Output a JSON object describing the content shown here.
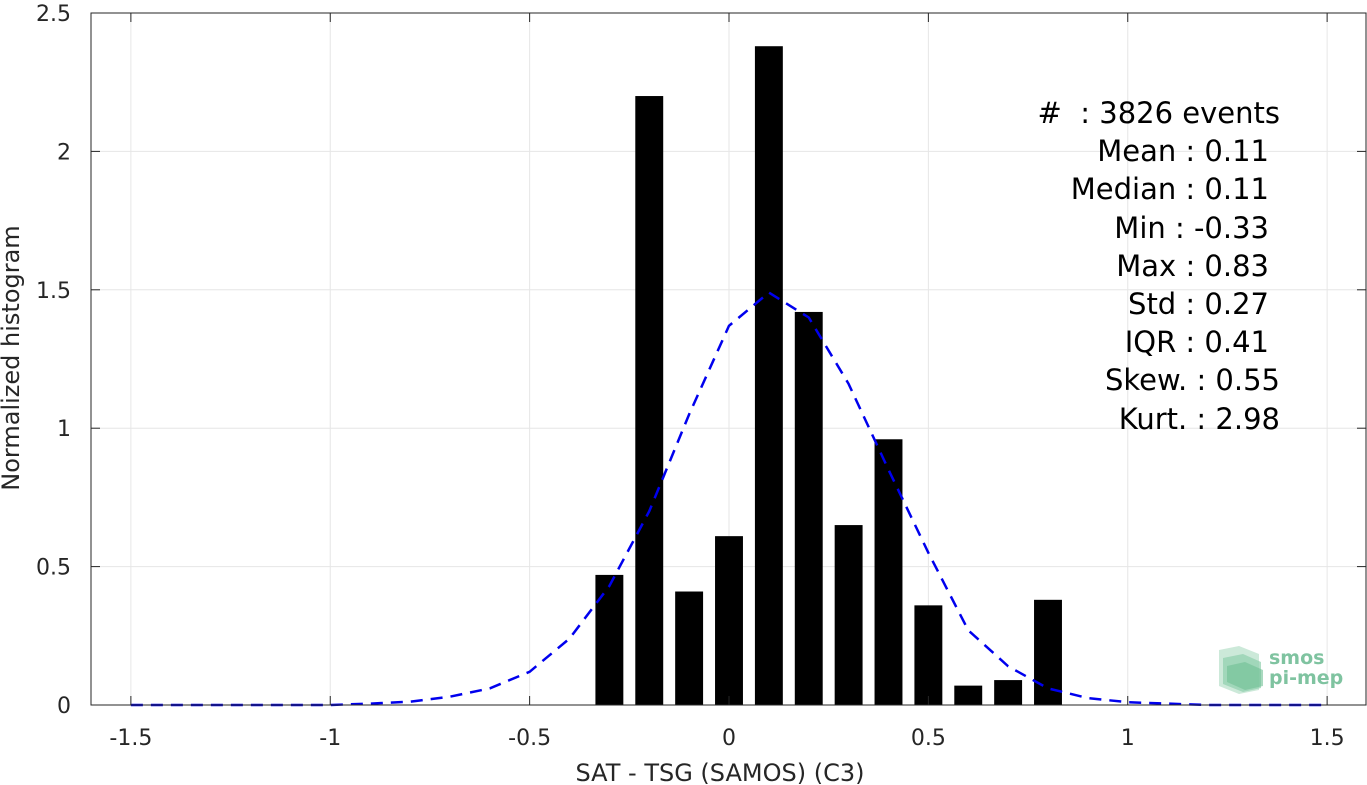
{
  "chart_data": {
    "type": "bar",
    "xlabel": "SAT - TSG (SAMOS) (C3)",
    "ylabel": "Normalized histogram",
    "xlim": [
      -1.6,
      1.6
    ],
    "ylim": [
      0,
      2.5
    ],
    "xticks": [
      -1.5,
      -1,
      -0.5,
      0,
      0.5,
      1,
      1.5
    ],
    "xtick_labels": [
      "-1.5",
      "-1",
      "-0.5",
      "0",
      "0.5",
      "1",
      "1.5"
    ],
    "yticks": [
      0,
      0.5,
      1,
      1.5,
      2,
      2.5
    ],
    "ytick_labels": [
      "0",
      "0.5",
      "1",
      "1.5",
      "2",
      "2.5"
    ],
    "grid": true,
    "bar_width": 0.07,
    "bars": {
      "x": [
        -0.3,
        -0.2,
        -0.1,
        0.0,
        0.1,
        0.2,
        0.3,
        0.4,
        0.5,
        0.6,
        0.7,
        0.8
      ],
      "values": [
        0.47,
        2.2,
        0.41,
        0.61,
        2.38,
        1.42,
        0.65,
        0.96,
        0.36,
        0.07,
        0.09,
        0.38
      ],
      "color": "#000000"
    },
    "fit_curve": {
      "style": "dashed",
      "color": "#0000ee",
      "x": [
        -1.5,
        -1.4,
        -1.3,
        -1.2,
        -1.1,
        -1.0,
        -0.9,
        -0.8,
        -0.7,
        -0.6,
        -0.5,
        -0.4,
        -0.3,
        -0.2,
        -0.1,
        0.0,
        0.1,
        0.2,
        0.3,
        0.4,
        0.5,
        0.6,
        0.7,
        0.8,
        0.9,
        1.0,
        1.1,
        1.2,
        1.3,
        1.4,
        1.5
      ],
      "y": [
        0.0,
        0.0,
        0.0,
        0.0,
        0.0,
        0.0,
        0.005,
        0.012,
        0.03,
        0.06,
        0.12,
        0.24,
        0.43,
        0.7,
        1.05,
        1.37,
        1.49,
        1.4,
        1.16,
        0.85,
        0.55,
        0.27,
        0.14,
        0.06,
        0.025,
        0.01,
        0.005,
        0.0,
        0.0,
        0.0,
        0.0
      ]
    },
    "annotation": [
      "#  : 3826 events",
      "Mean : 0.11",
      "Median : 0.11",
      "Min : -0.33",
      "Max : 0.83",
      "Std : 0.27",
      "IQR : 0.41",
      "Skew. : 0.55",
      "Kurt. : 2.98"
    ]
  },
  "logo": {
    "line1": "smos",
    "line2": "pi-mep",
    "color": "#7fc3a0"
  }
}
